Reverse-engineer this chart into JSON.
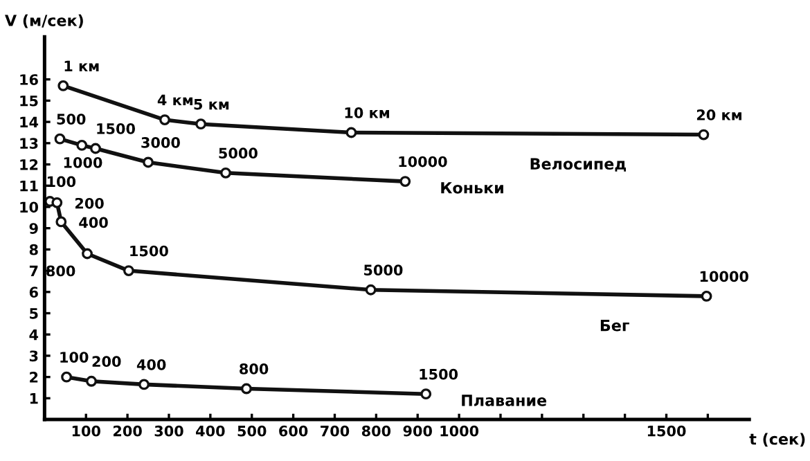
{
  "chart_data": {
    "type": "line",
    "xlabel": "t (сек)",
    "ylabel": "V (м/сек)",
    "marker": "circle",
    "line_style": "solid",
    "grid": false,
    "xlim": [
      0,
      1700
    ],
    "ylim": [
      0,
      18
    ],
    "xticks": [
      100,
      200,
      300,
      400,
      500,
      600,
      700,
      800,
      900,
      1000,
      {
        "value": 1100,
        "label": null
      },
      {
        "value": 1200,
        "label": null
      },
      {
        "value": 1300,
        "label": null
      },
      {
        "value": 1400,
        "label": null
      },
      1500,
      {
        "value": 1600,
        "label": null
      }
    ],
    "yticks": [
      1,
      2,
      3,
      4,
      5,
      6,
      7,
      8,
      9,
      10,
      11,
      12,
      13,
      14,
      15,
      16
    ],
    "series": [
      {
        "name": "Велосипед",
        "color": "#111111",
        "x": [
          45,
          290,
          377,
          740,
          1590
        ],
        "values": [
          15.7,
          14.1,
          13.9,
          13.5,
          13.4
        ]
      },
      {
        "name": "Коньки",
        "color": "#111111",
        "x": [
          37,
          90,
          123,
          250,
          437,
          870
        ],
        "values": [
          13.2,
          12.9,
          12.75,
          12.1,
          11.6,
          11.2
        ]
      },
      {
        "name": "Бег",
        "color": "#111111",
        "x": [
          13,
          30,
          40,
          103,
          203,
          787,
          1597
        ],
        "values": [
          10.26,
          10.2,
          9.3,
          7.8,
          7.0,
          6.1,
          5.8
        ]
      },
      {
        "name": "Плавание",
        "color": "#111111",
        "x": [
          53,
          113,
          240,
          487,
          920
        ],
        "values": [
          2.0,
          1.8,
          1.65,
          1.45,
          1.2
        ]
      }
    ],
    "annotations": [
      {
        "text": "1 км",
        "x": 45,
        "y": 15.7
      },
      {
        "text": "4 км",
        "x": 290,
        "y": 14.1
      },
      {
        "text": "5 км",
        "x": 377,
        "y": 13.9
      },
      {
        "text": "10 км",
        "x": 740,
        "y": 13.5
      },
      {
        "text": "20 км",
        "x": 1590,
        "y": 13.4
      },
      {
        "text": "500",
        "x": 37,
        "y": 13.2
      },
      {
        "text": "1000",
        "x": 90,
        "y": 12.9
      },
      {
        "text": "1500",
        "x": 123,
        "y": 12.75
      },
      {
        "text": "3000",
        "x": 250,
        "y": 12.1
      },
      {
        "text": "5000",
        "x": 437,
        "y": 11.6
      },
      {
        "text": "10000",
        "x": 870,
        "y": 11.2
      },
      {
        "text": "100",
        "x": 13,
        "y": 10.26
      },
      {
        "text": "200",
        "x": 30,
        "y": 10.2
      },
      {
        "text": "400",
        "x": 40,
        "y": 9.3
      },
      {
        "text": "800",
        "x": 103,
        "y": 7.8
      },
      {
        "text": "1500",
        "x": 203,
        "y": 7.0
      },
      {
        "text": "5000",
        "x": 787,
        "y": 6.1
      },
      {
        "text": "10000",
        "x": 1597,
        "y": 5.8
      },
      {
        "text": "100",
        "x": 53,
        "y": 2.0
      },
      {
        "text": "200",
        "x": 113,
        "y": 1.8
      },
      {
        "text": "400",
        "x": 240,
        "y": 1.65
      },
      {
        "text": "800",
        "x": 487,
        "y": 1.45
      },
      {
        "text": "1500",
        "x": 920,
        "y": 1.2
      }
    ]
  }
}
